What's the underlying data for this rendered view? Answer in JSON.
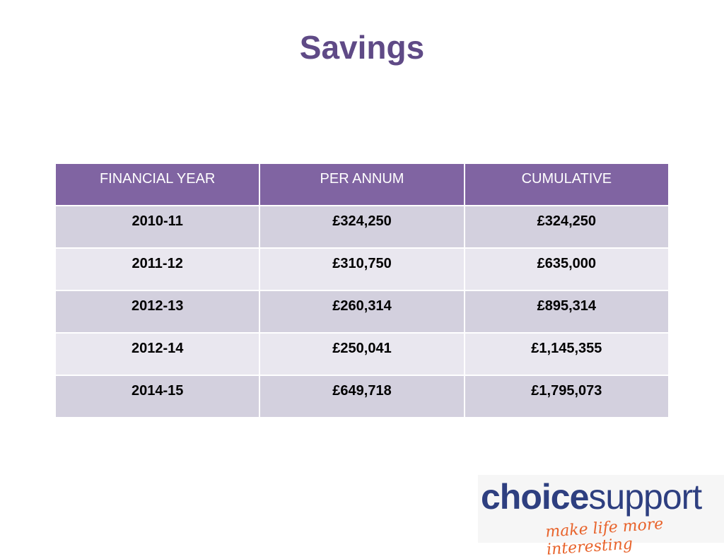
{
  "header": {
    "title": "Savings"
  },
  "table": {
    "columns": [
      "FINANCIAL YEAR",
      "PER ANNUM",
      "CUMULATIVE"
    ],
    "rows": [
      [
        "2010-11",
        "£324,250",
        "£324,250"
      ],
      [
        "2011-12",
        "£310,750",
        "£635,000"
      ],
      [
        "2012-13",
        "£260,314",
        "£895,314"
      ],
      [
        "2012-14",
        "£250,041",
        "£1,145,355"
      ],
      [
        "2014-15",
        "£649,718",
        "£1,795,073"
      ]
    ]
  },
  "logo": {
    "brand_bold": "choice",
    "brand_light": "support",
    "tagline": "make life more interesting"
  }
}
